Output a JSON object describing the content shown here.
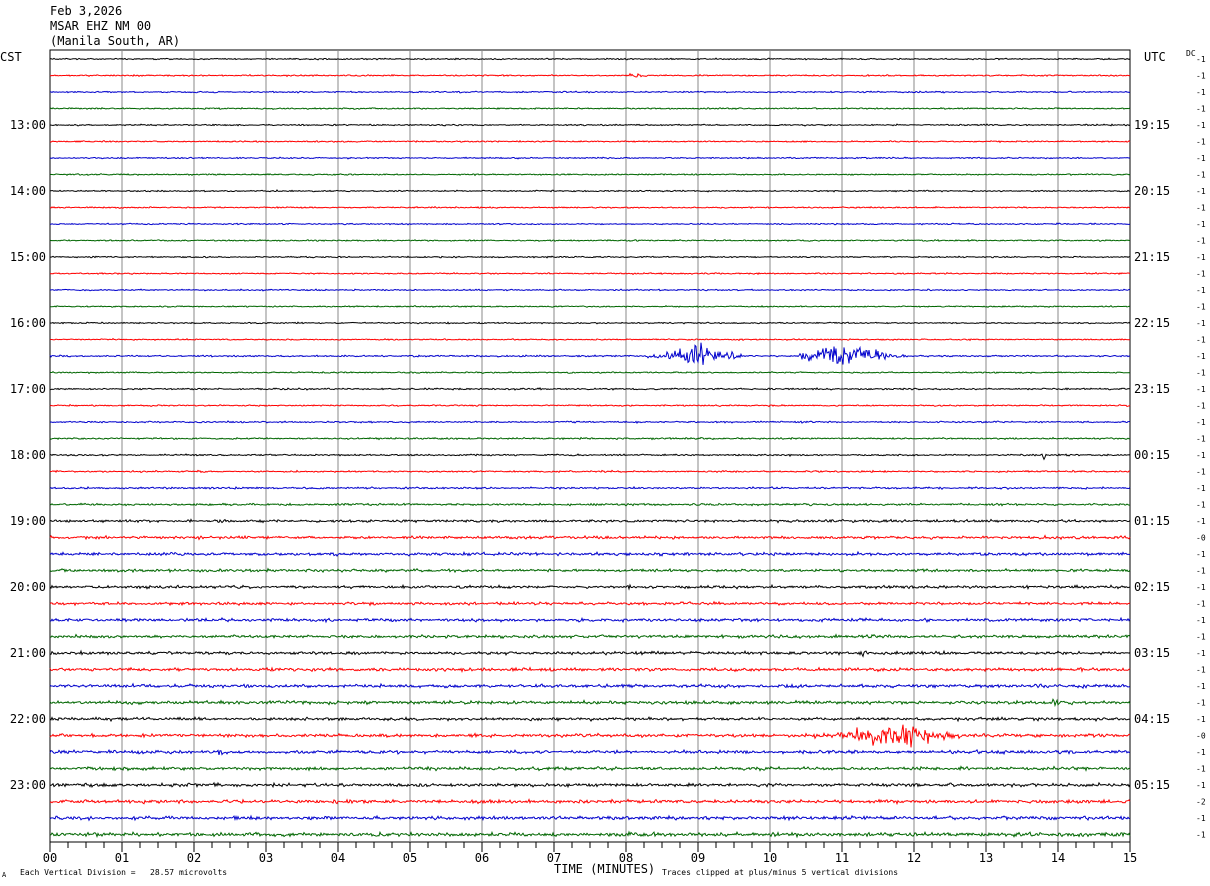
{
  "header": {
    "date": "Feb 3,2026",
    "station": "MSAR EHZ NM 00",
    "location": "(Manila South, AR)"
  },
  "left_timezone": "CST",
  "right_timezone": "UTC",
  "dc_label": "DC",
  "footer": {
    "scale_note": "Each Vertical Division =   28.57 microvolts",
    "xlabel": "TIME (MINUTES)",
    "clip_note": "Traces clipped at plus/minus 5 vertical divisions",
    "corner_mark": "A"
  },
  "colors": {
    "trace_cycle": [
      "#000000",
      "#ff0000",
      "#0000cc",
      "#006600"
    ],
    "grid": "#888888",
    "frame": "#000000"
  },
  "chart_data": {
    "type": "line",
    "title": "",
    "xlabel": "TIME (MINUTES)",
    "ylabel": "",
    "xlim": [
      0,
      15
    ],
    "x_ticks": [
      "00",
      "01",
      "02",
      "03",
      "04",
      "05",
      "06",
      "07",
      "08",
      "09",
      "10",
      "11",
      "12",
      "13",
      "14",
      "15"
    ],
    "trace_count": 48,
    "minutes_per_trace": 15,
    "left_hour_labels": [
      "13:00",
      "14:00",
      "15:00",
      "16:00",
      "17:00",
      "18:00",
      "19:00",
      "20:00",
      "21:00",
      "22:00",
      "23:00"
    ],
    "right_hour_labels": [
      "19:15",
      "20:15",
      "21:15",
      "22:15",
      "23:15",
      "00:15",
      "01:15",
      "02:15",
      "03:15",
      "04:15",
      "05:15"
    ],
    "hour_label_traces": [
      4,
      8,
      12,
      16,
      20,
      24,
      28,
      32,
      36,
      40,
      44
    ],
    "dc_offsets": [
      "-1",
      "-1",
      "-1",
      "-1",
      "-1",
      "-1",
      "-1",
      "-1",
      "-1",
      "-1",
      "-1",
      "-1",
      "-1",
      "-1",
      "-1",
      "-1",
      "-1",
      "-1",
      "-1",
      "-1",
      "-1",
      "-1",
      "-1",
      "-1",
      "-1",
      "-1",
      "-1",
      "-1",
      "-1",
      "-0",
      "-1",
      "-1",
      "-1",
      "-1",
      "-1",
      "-1",
      "-1",
      "-1",
      "-1",
      "-1",
      "-1",
      "-0",
      "-1",
      "-1",
      "-1",
      "-2",
      "-1",
      "-1"
    ],
    "noise_amplitude": [
      0.6,
      0.6,
      0.6,
      0.6,
      0.6,
      0.6,
      0.6,
      0.6,
      0.6,
      0.6,
      0.6,
      0.6,
      0.6,
      0.6,
      0.6,
      0.6,
      0.6,
      0.6,
      0.7,
      0.6,
      0.7,
      0.6,
      0.7,
      0.7,
      0.7,
      0.7,
      0.8,
      0.9,
      1.1,
      1.2,
      1.3,
      1.2,
      1.2,
      1.2,
      1.3,
      1.3,
      1.3,
      1.4,
      1.4,
      1.4,
      1.3,
      1.4,
      1.4,
      1.4,
      1.4,
      1.5,
      1.5,
      1.6
    ],
    "events": [
      {
        "trace": 18,
        "start_min": 8.3,
        "end_min": 9.6,
        "peak_min": 9.0,
        "amplitude": 11
      },
      {
        "trace": 18,
        "start_min": 10.4,
        "end_min": 11.9,
        "peak_min": 11.0,
        "amplitude": 10
      },
      {
        "trace": 41,
        "start_min": 10.6,
        "end_min": 12.7,
        "peak_min": 11.7,
        "amplitude": 12
      },
      {
        "trace": 24,
        "start_min": 13.79,
        "end_min": 13.84,
        "peak_min": 13.81,
        "amplitude": 6
      },
      {
        "trace": 1,
        "start_min": 8.0,
        "end_min": 8.4,
        "peak_min": 8.1,
        "amplitude": 2
      },
      {
        "trace": 36,
        "start_min": 11.2,
        "end_min": 11.4,
        "peak_min": 11.3,
        "amplitude": 4
      },
      {
        "trace": 39,
        "start_min": 13.9,
        "end_min": 14.1,
        "peak_min": 13.95,
        "amplitude": 4
      },
      {
        "trace": 42,
        "start_min": 2.2,
        "end_min": 2.5,
        "peak_min": 2.35,
        "amplitude": 4
      },
      {
        "trace": 45,
        "start_min": 7.2,
        "end_min": 7.5,
        "peak_min": 7.35,
        "amplitude": 3
      },
      {
        "trace": 32,
        "start_min": 8.0,
        "end_min": 8.1,
        "peak_min": 8.05,
        "amplitude": 4
      }
    ]
  }
}
